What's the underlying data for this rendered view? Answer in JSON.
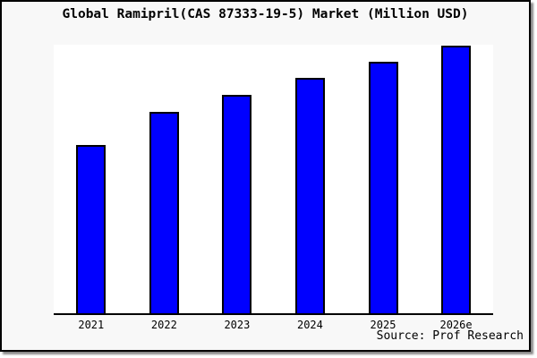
{
  "title": "Global Ramipril(CAS 87333-19-5) Market (Million USD)",
  "source_caption": "Source: Prof Research",
  "colors": {
    "bar_fill": "#0000ff",
    "bar_border": "#000000",
    "frame_background": "#f8f8f8",
    "plot_background": "#ffffff",
    "text": "#000000"
  },
  "chart_data": {
    "type": "bar",
    "title": "Global Ramipril(CAS 87333-19-5) Market (Million USD)",
    "categories": [
      "2021",
      "2022",
      "2023",
      "2024",
      "2025",
      "2026e"
    ],
    "values": [
      62.9,
      75.3,
      81.6,
      88.0,
      94.0,
      100.0
    ],
    "value_note": "y-axis has no tick labels or gridlines; values are relative bar heights with 2026e normalized to 100",
    "xlabel": "",
    "ylabel": "",
    "legend": false,
    "grid": false,
    "annotations": [
      "Source: Prof Research"
    ]
  }
}
